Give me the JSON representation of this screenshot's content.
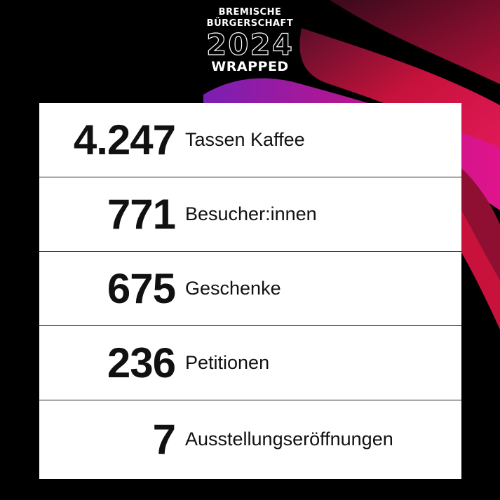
{
  "header": {
    "org_line1": "BREMISCHE",
    "org_line2": "BÜRGERSCHAFT",
    "year": "2024",
    "subtitle": "WRAPPED"
  },
  "stats": [
    {
      "value": "4.247",
      "label": "Tassen Kaffee"
    },
    {
      "value": "771",
      "label": "Besucher:innen"
    },
    {
      "value": "675",
      "label": "Geschenke"
    },
    {
      "value": "236",
      "label": "Petitionen"
    },
    {
      "value": "7",
      "label": "Ausstellungseröffnungen"
    }
  ],
  "colors": {
    "background": "#000000",
    "accent_red": "#d4123a",
    "accent_magenta": "#e0148c",
    "accent_purple": "#7a1fb3",
    "card": "#ffffff"
  }
}
